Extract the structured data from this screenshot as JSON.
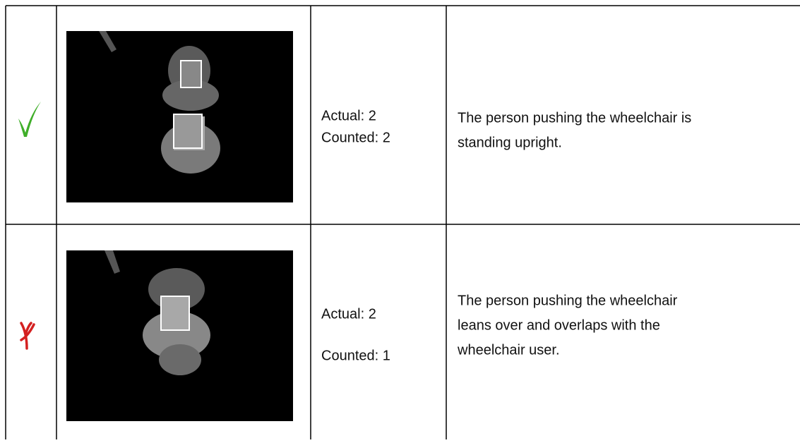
{
  "table": {
    "rows": [
      {
        "actual": "Actual: 2",
        "counted": "Counted: 2",
        "description": [
          "The person pushing the wheelchair is",
          "standing upright."
        ]
      },
      {
        "actual": "Actual: 2",
        "counted": "Counted: 1",
        "description": [
          "The person pushing the wheelchair",
          "leans over and overlaps with the",
          "wheelchair user."
        ]
      }
    ]
  }
}
